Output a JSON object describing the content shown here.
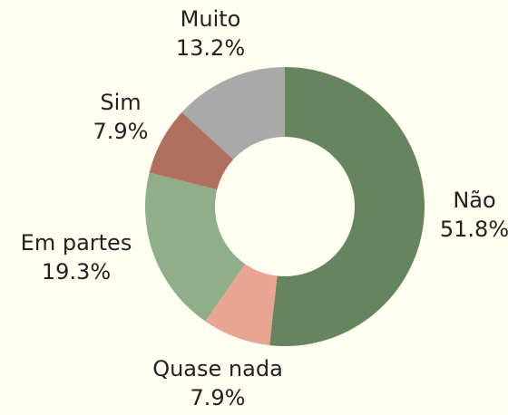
{
  "chart_data": {
    "type": "donut",
    "categories": [
      "Não",
      "Quase nada",
      "Em partes",
      "Sim",
      "Muito"
    ],
    "values": [
      51.8,
      7.9,
      19.3,
      7.9,
      13.2
    ],
    "value_labels": [
      "51.8%",
      "7.9%",
      "19.3%",
      "7.9%",
      "13.2%"
    ],
    "colors": [
      "#66855f",
      "#e8a593",
      "#91ae8b",
      "#b07060",
      "#a9a9a9"
    ]
  }
}
